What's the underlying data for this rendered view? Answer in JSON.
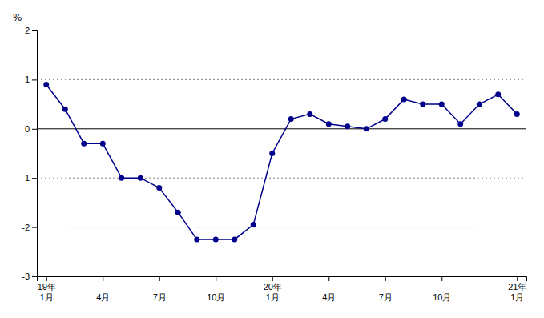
{
  "chart_data": {
    "type": "line",
    "ylabel": "%",
    "categories": [
      "19年\n1月",
      null,
      null,
      "4月",
      null,
      null,
      "7月",
      null,
      null,
      "10月",
      null,
      null,
      "20年\n1月",
      null,
      null,
      "4月",
      null,
      null,
      "7月",
      null,
      null,
      "10月",
      null,
      null,
      null,
      "21年\n1月"
    ],
    "values": [
      0.9,
      0.4,
      -0.3,
      -0.3,
      -1.0,
      -1.0,
      -1.2,
      -1.7,
      -2.25,
      -2.25,
      -2.25,
      -1.95,
      -0.5,
      0.2,
      0.3,
      0.1,
      0.05,
      0.0,
      0.2,
      0.6,
      0.5,
      0.5,
      0.1,
      0.5,
      0.7,
      0.3
    ],
    "color": "#00008B",
    "marker": "circle",
    "ylim": [
      -3,
      2
    ],
    "yticks": [
      -3,
      -2,
      -1,
      0,
      1,
      2
    ],
    "grid": true
  }
}
